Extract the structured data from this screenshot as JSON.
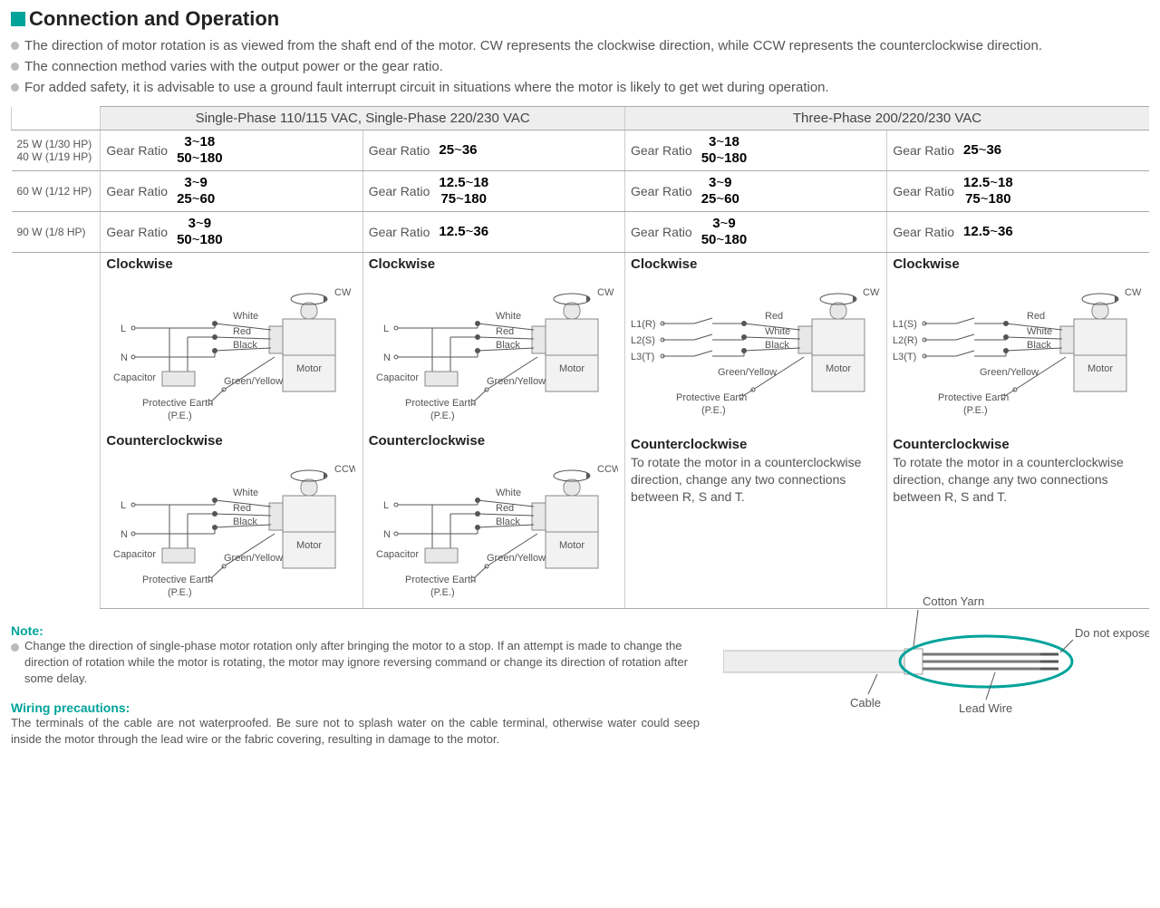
{
  "title": "Connection and Operation",
  "bullets": [
    "The direction of motor rotation is as viewed from the shaft end of the motor. CW represents the clockwise direction, while CCW represents the counterclockwise direction.",
    "The connection method varies with the output power or the gear ratio.",
    "For added safety, it is advisable to use a ground fault interrupt circuit in situations where the motor is likely to get wet during operation."
  ],
  "table": {
    "header_left": "Single-Phase 110/115 VAC, Single-Phase 220/230 VAC",
    "header_right": "Three-Phase 200/220/230 VAC",
    "rows": [
      {
        "label_lines": [
          "25 W (1/30 HP)",
          "40 W (1/19 HP)"
        ],
        "cells": [
          {
            "label": "Gear Ratio",
            "lines": [
              "3~18",
              "50~180"
            ]
          },
          {
            "label": "Gear Ratio",
            "lines": [
              "25~36"
            ]
          },
          {
            "label": "Gear Ratio",
            "lines": [
              "3~18",
              "50~180"
            ]
          },
          {
            "label": "Gear Ratio",
            "lines": [
              "25~36"
            ]
          }
        ]
      },
      {
        "label_lines": [
          "60 W (1/12 HP)"
        ],
        "cells": [
          {
            "label": "Gear Ratio",
            "lines": [
              "3~9",
              "25~60"
            ]
          },
          {
            "label": "Gear Ratio",
            "lines": [
              "12.5~18",
              "75~180"
            ]
          },
          {
            "label": "Gear Ratio",
            "lines": [
              "3~9",
              "25~60"
            ]
          },
          {
            "label": "Gear Ratio",
            "lines": [
              "12.5~18",
              "75~180"
            ]
          }
        ]
      },
      {
        "label_lines": [
          "90 W (1/8 HP)"
        ],
        "cells": [
          {
            "label": "Gear Ratio",
            "lines": [
              "3~9",
              "50~180"
            ]
          },
          {
            "label": "Gear Ratio",
            "lines": [
              "12.5~36"
            ]
          },
          {
            "label": "Gear Ratio",
            "lines": [
              "3~9",
              "50~180"
            ]
          },
          {
            "label": "Gear Ratio",
            "lines": [
              "12.5~36"
            ]
          }
        ]
      }
    ]
  },
  "diagrams": {
    "cw_label": "Clockwise",
    "ccw_label": "Counterclockwise",
    "ccw_three_phase": "To rotate the motor in a counterclockwise direction, change any two connections between R, S and T.",
    "single": {
      "wires": [
        "White",
        "Red",
        "Black"
      ],
      "terminals": [
        "L",
        "N"
      ],
      "capacitor": "Capacitor",
      "pe1": "Green/Yellow",
      "pe2": "Protective Earth",
      "pe3": "(P.E.)",
      "motor": "Motor",
      "dir_cw": "CW",
      "dir_ccw": "CCW"
    },
    "three": {
      "wires": [
        "Red",
        "White",
        "Black"
      ],
      "terminals": [
        "L1(R)",
        "L2(S)",
        "L3(T)"
      ],
      "pe1": "Green/Yellow",
      "pe2": "Protective Earth",
      "pe3": "(P.E.)",
      "motor": "Motor",
      "dir_cw": "CW"
    },
    "three_alt_terminals": [
      "L1(S)",
      "L2(R)",
      "L3(T)"
    ]
  },
  "note": {
    "heading": "Note:",
    "text": "Change the direction of single-phase motor rotation only after bringing the motor to a stop. If an attempt is made to change the direction of rotation while the motor is rotating, the motor may ignore reversing command or change its direction of rotation after some delay."
  },
  "wiring": {
    "heading": "Wiring precautions:",
    "text": "The terminals of the cable are not waterproofed. Be sure not to splash water on the cable terminal, otherwise water could seep inside the motor through the lead wire or the fabric covering, resulting in damage to the motor."
  },
  "cable": {
    "cable": "Cable",
    "cotton": "Cotton Yarn",
    "lead": "Lead Wire",
    "warn": "Do not expose to water"
  },
  "colors": {
    "teal": "#00a39a",
    "grid": "#aaaaaa",
    "text": "#555555",
    "light": "#e8e8e8"
  }
}
